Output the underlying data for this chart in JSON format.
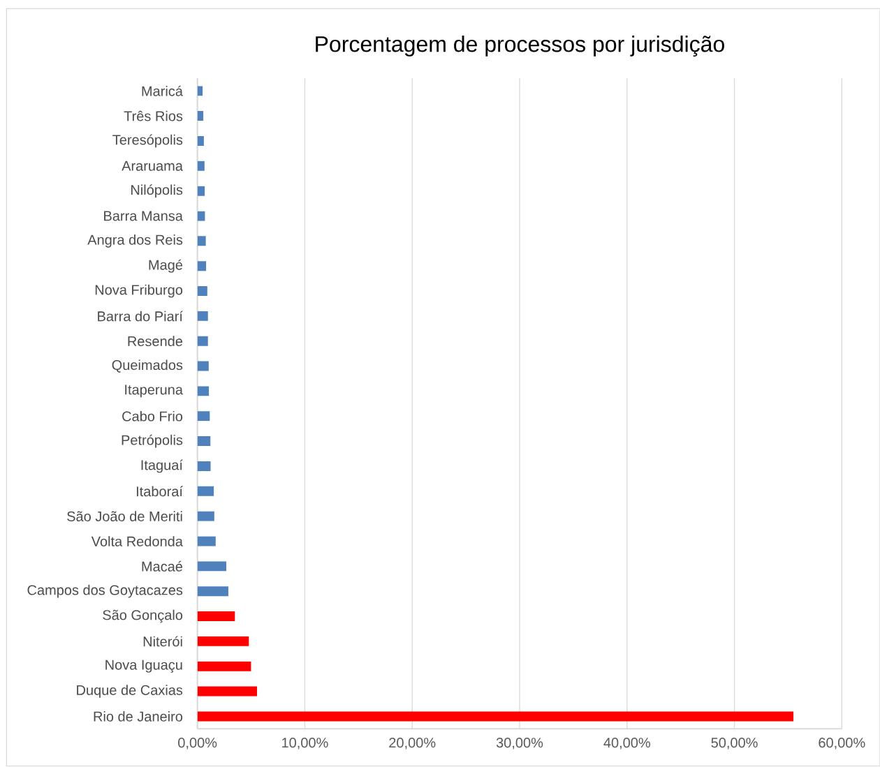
{
  "chart_data": {
    "type": "bar",
    "orientation": "horizontal",
    "title": "Porcentagem de processos por jurisdição",
    "categories": [
      "Maricá",
      "Três Rios",
      "Teresópolis",
      "Araruama",
      "Nilópolis",
      "Barra Mansa",
      "Angra dos Reis",
      "Magé",
      "Nova Friburgo",
      "Barra do Piarí",
      "Resende",
      "Queimados",
      "Itaperuna",
      "Cabo Frio",
      "Petrópolis",
      "Itaguaí",
      "Itaboraí",
      "São João de Meriti",
      "Volta Redonda",
      "Macaé",
      "Campos dos Goytacazes",
      "São Gonçalo",
      "Niterói",
      "Nova Iguaçu",
      "Duque de Caxias",
      "Rio de Janeiro"
    ],
    "values": [
      0.49,
      0.55,
      0.6,
      0.66,
      0.68,
      0.7,
      0.78,
      0.81,
      0.92,
      0.98,
      0.98,
      1.05,
      1.07,
      1.15,
      1.21,
      1.23,
      1.53,
      1.57,
      1.7,
      2.69,
      2.88,
      3.49,
      4.79,
      4.99,
      5.55,
      55.5
    ],
    "colors": [
      "#4f81bd",
      "#4f81bd",
      "#4f81bd",
      "#4f81bd",
      "#4f81bd",
      "#4f81bd",
      "#4f81bd",
      "#4f81bd",
      "#4f81bd",
      "#4f81bd",
      "#4f81bd",
      "#4f81bd",
      "#4f81bd",
      "#4f81bd",
      "#4f81bd",
      "#4f81bd",
      "#4f81bd",
      "#4f81bd",
      "#4f81bd",
      "#4f81bd",
      "#4f81bd",
      "#ff0000",
      "#ff0000",
      "#ff0000",
      "#ff0000",
      "#ff0000"
    ],
    "xlim": [
      0,
      60
    ],
    "xticks": [
      {
        "value": 0,
        "label": "0,00%"
      },
      {
        "value": 10,
        "label": "10,00%"
      },
      {
        "value": 20,
        "label": "20,00%"
      },
      {
        "value": 30,
        "label": "30,00%"
      },
      {
        "value": 40,
        "label": "40,00%"
      },
      {
        "value": 50,
        "label": "50,00%"
      },
      {
        "value": 60,
        "label": "60,00%"
      }
    ],
    "grid": "x"
  }
}
